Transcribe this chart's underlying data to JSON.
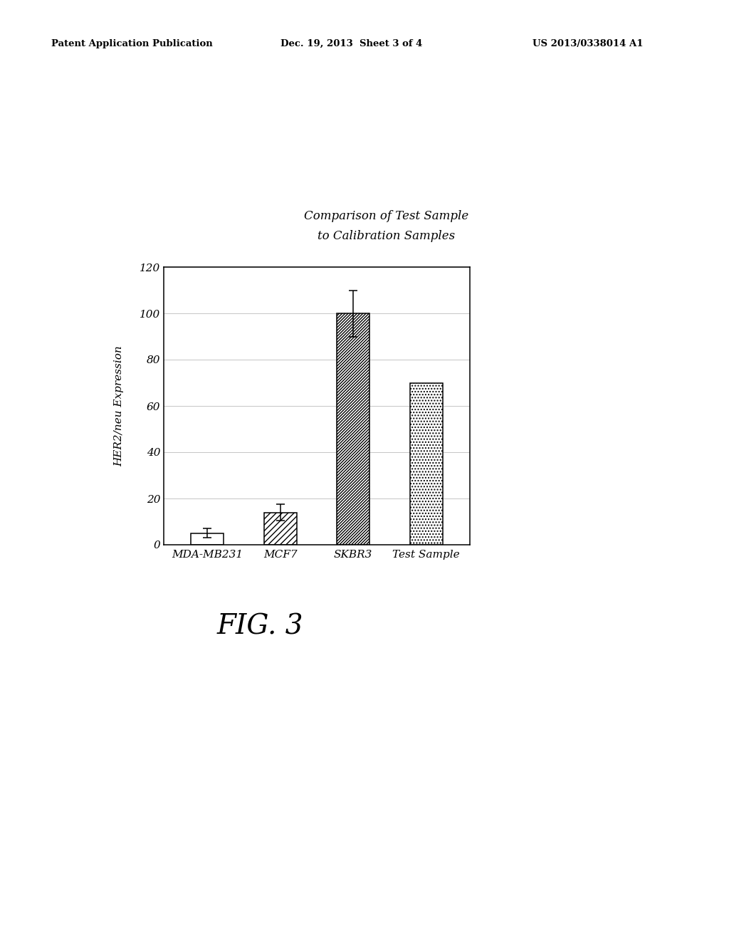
{
  "title_line1": "Comparison of Test Sample",
  "title_line2": "to Calibration Samples",
  "categories": [
    "MDA-MB231",
    "MCF7",
    "SKBR3",
    "Test Sample"
  ],
  "values": [
    5,
    14,
    100,
    70
  ],
  "errors": [
    2,
    3.5,
    10,
    0
  ],
  "ylabel": "HER2/neu Expression",
  "ylim": [
    0,
    120
  ],
  "yticks": [
    0,
    20,
    40,
    60,
    80,
    100,
    120
  ],
  "bar_width": 0.45,
  "header_left": "Patent Application Publication",
  "header_mid": "Dec. 19, 2013  Sheet 3 of 4",
  "header_right": "US 2013/0338014 A1",
  "fig_label": "FIG. 3",
  "background_color": "#ffffff",
  "plot_bg_color": "#ffffff"
}
